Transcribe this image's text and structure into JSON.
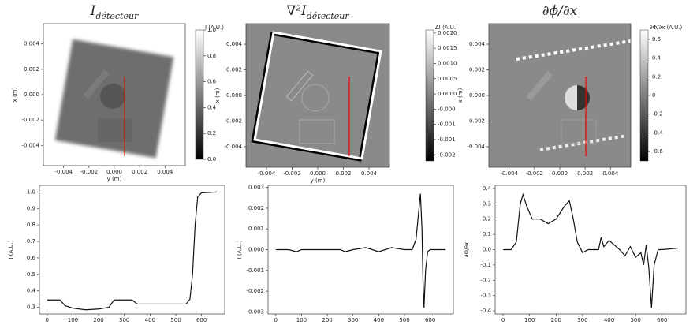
{
  "chart_data": [
    {
      "type": "image",
      "title": "I",
      "title_sub": "détecteur",
      "xlabel": "y (m)",
      "ylabel": "x (m)",
      "xlim": [
        -0.0056,
        0.0056
      ],
      "ylim": [
        -0.0056,
        0.0056
      ],
      "xticks": [
        -0.004,
        -0.002,
        {
          "value": 0,
          "label": "0.000"
        },
        0.002,
        0.004
      ],
      "yticks": [
        -0.004,
        -0.002,
        {
          "value": 0,
          "label": "0.000"
        },
        0.002,
        0.004
      ],
      "colorbar_label": "I (A.U.)",
      "colorbar_lim": [
        0,
        1
      ],
      "colorbar_ticks": [
        {
          "value": 0,
          "label": "0.0"
        },
        0.2,
        0.4,
        0.6,
        0.8,
        {
          "value": 1,
          "label": "1.0"
        }
      ]
    },
    {
      "type": "image",
      "title": "∇²I",
      "title_sub": "détecteur",
      "xlabel": "y (m)",
      "ylabel": "x (m)",
      "xlim": [
        -0.0056,
        0.0056
      ],
      "ylim": [
        -0.0056,
        0.0056
      ],
      "xticks": [
        -0.004,
        -0.002,
        {
          "value": 0,
          "label": "0.000"
        },
        0.002,
        0.004
      ],
      "yticks": [
        -0.004,
        -0.002,
        {
          "value": 0,
          "label": "0.000"
        },
        0.002,
        0.004
      ],
      "colorbar_label": "ΔI (A.U.)",
      "colorbar_lim": [
        -0.0022,
        0.0021
      ],
      "colorbar_ticks": [
        {
          "value": 0.002,
          "label": "0.0020"
        },
        {
          "value": 0.0015,
          "label": "0.0015"
        },
        {
          "value": 0.001,
          "label": "0.0010"
        },
        {
          "value": 0.0005,
          "label": "0.0005"
        },
        {
          "value": 0,
          "label": "0.0000"
        },
        {
          "value": -0.0005,
          "label": "-0.000"
        },
        {
          "value": -0.001,
          "label": "-0.001"
        },
        {
          "value": -0.0015,
          "label": "-0.001"
        },
        {
          "value": -0.002,
          "label": "-0.002"
        }
      ]
    },
    {
      "type": "image",
      "title": "∂ϕ/∂x",
      "title_sub": null,
      "xlabel": null,
      "ylabel": "x (m)",
      "xlim": [
        -0.0056,
        0.0056
      ],
      "ylim": [
        -0.0056,
        0.0056
      ],
      "xticks": [
        -0.004,
        -0.002,
        {
          "value": 0,
          "label": "0.000"
        },
        0.002,
        0.004
      ],
      "yticks": [
        -0.004,
        -0.002,
        {
          "value": 0,
          "label": "0.000"
        },
        0.002,
        0.004
      ],
      "colorbar_label": "∂Φ/∂x (A.U.)",
      "colorbar_lim": [
        -0.7,
        0.7
      ],
      "colorbar_ticks": [
        0.6,
        0.4,
        0.2,
        0,
        -0.2,
        -0.4,
        -0.6
      ]
    },
    {
      "type": "line",
      "ylabel": "I (A.U.)",
      "xlim": [
        -30,
        690
      ],
      "ylim": [
        0.26,
        1.04
      ],
      "xticks": [
        0,
        100,
        200,
        300,
        400,
        500,
        600
      ],
      "yticks": [
        0.3,
        0.4,
        0.5,
        0.6,
        0.7,
        0.8,
        0.9,
        {
          "value": 1,
          "label": "1.0"
        }
      ],
      "x": [
        0,
        50,
        70,
        100,
        150,
        200,
        240,
        260,
        300,
        330,
        350,
        400,
        500,
        540,
        555,
        565,
        575,
        585,
        600,
        660
      ],
      "values": [
        0.345,
        0.345,
        0.31,
        0.295,
        0.285,
        0.29,
        0.3,
        0.345,
        0.345,
        0.345,
        0.32,
        0.32,
        0.32,
        0.32,
        0.35,
        0.5,
        0.8,
        0.97,
        0.995,
        1.0
      ],
      "color": "#111"
    },
    {
      "type": "line",
      "ylabel": "I (A.U.)",
      "xlim": [
        -30,
        690
      ],
      "ylim": [
        -0.0031,
        0.0031
      ],
      "xticks": [
        0,
        100,
        200,
        300,
        400,
        500,
        600
      ],
      "yticks": [
        -0.003,
        -0.002,
        -0.001,
        {
          "value": 0,
          "label": "0.000"
        },
        0.001,
        0.002,
        0.003
      ],
      "x": [
        0,
        50,
        80,
        100,
        150,
        200,
        250,
        270,
        300,
        350,
        400,
        450,
        500,
        530,
        545,
        555,
        562,
        568,
        572,
        576,
        582,
        590,
        600,
        620,
        660
      ],
      "values": [
        0,
        0,
        -0.0001,
        0,
        0,
        0,
        0,
        -0.0001,
        0,
        0.0001,
        -0.0001,
        0.0001,
        0,
        0,
        0.0005,
        0.0018,
        0.0027,
        0.001,
        -0.0015,
        -0.0028,
        -0.001,
        -0.0001,
        0,
        0,
        0
      ],
      "color": "#111"
    },
    {
      "type": "line",
      "ylabel": "∂Φ/∂x",
      "xlim": [
        -30,
        690
      ],
      "ylim": [
        -0.42,
        0.42
      ],
      "xticks": [
        0,
        100,
        200,
        300,
        400,
        500,
        600
      ],
      "yticks": [
        -0.4,
        -0.3,
        -0.2,
        -0.1,
        {
          "value": 0,
          "label": "0.0"
        },
        0.1,
        0.2,
        0.3,
        0.4
      ],
      "x": [
        0,
        30,
        50,
        65,
        75,
        90,
        110,
        140,
        170,
        200,
        230,
        250,
        265,
        280,
        300,
        320,
        340,
        360,
        370,
        380,
        400,
        420,
        440,
        460,
        480,
        500,
        520,
        530,
        540,
        550,
        560,
        570,
        585,
        600,
        660
      ],
      "values": [
        0,
        0,
        0.05,
        0.3,
        0.36,
        0.28,
        0.2,
        0.2,
        0.17,
        0.2,
        0.28,
        0.32,
        0.2,
        0.05,
        -0.02,
        0,
        0,
        0,
        0.08,
        0.02,
        0.06,
        0.03,
        0,
        -0.04,
        0.02,
        -0.05,
        -0.02,
        -0.1,
        0.03,
        -0.12,
        -0.38,
        -0.1,
        0,
        0,
        0.01
      ],
      "color": "#111"
    }
  ]
}
